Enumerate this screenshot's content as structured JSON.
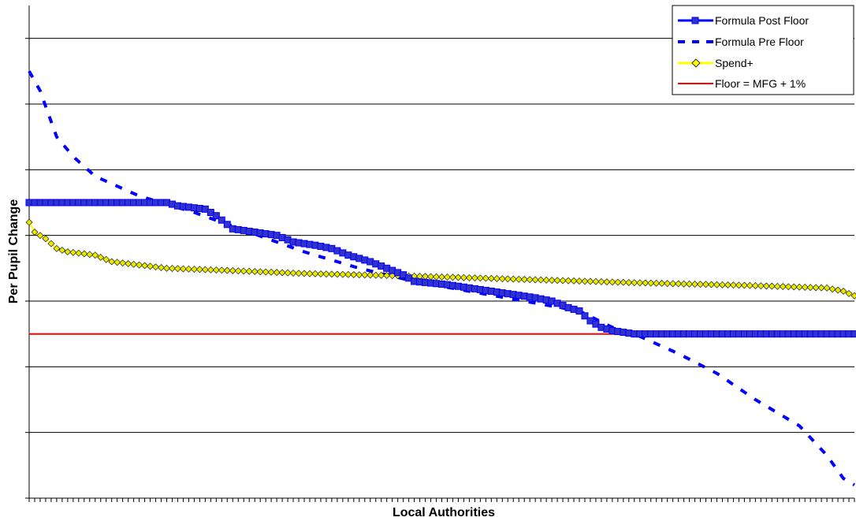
{
  "chart_data": {
    "type": "line",
    "title": "",
    "xlabel": "Local Authorities",
    "ylabel": "Per Pupil Change",
    "x_count": 150,
    "ylim": [
      0,
      7.5
    ],
    "y_gridlines": [
      1,
      2,
      3,
      4,
      5,
      6,
      7
    ],
    "grid": true,
    "tick_labels_shown": false,
    "legend_position": "top-right",
    "colors": {
      "post_floor": "#0000ff",
      "post_floor_marker": "#3333cc",
      "pre_floor": "#0000ff",
      "spend_plus_line": "#ffff00",
      "spend_plus_marker": "#e8e800",
      "floor": "#ff0000",
      "grid": "#000000"
    },
    "series": [
      {
        "name": "Formula Post Floor",
        "style": "solid-square-markers",
        "points": [
          [
            0,
            4.5
          ],
          [
            25,
            4.5
          ],
          [
            27,
            4.45
          ],
          [
            32,
            4.4
          ],
          [
            34,
            4.3
          ],
          [
            37,
            4.1
          ],
          [
            45,
            4.0
          ],
          [
            48,
            3.9
          ],
          [
            52,
            3.85
          ],
          [
            55,
            3.8
          ],
          [
            58,
            3.7
          ],
          [
            62,
            3.6
          ],
          [
            65,
            3.5
          ],
          [
            68,
            3.4
          ],
          [
            70,
            3.3
          ],
          [
            76,
            3.25
          ],
          [
            80,
            3.2
          ],
          [
            84,
            3.15
          ],
          [
            88,
            3.1
          ],
          [
            92,
            3.05
          ],
          [
            95,
            3.0
          ],
          [
            98,
            2.9
          ],
          [
            100,
            2.85
          ],
          [
            102,
            2.7
          ],
          [
            104,
            2.6
          ],
          [
            106,
            2.55
          ],
          [
            110,
            2.5
          ],
          [
            115,
            2.5
          ],
          [
            150,
            2.5
          ]
        ]
      },
      {
        "name": "Formula Pre Floor",
        "style": "dashed",
        "points": [
          [
            0,
            6.5
          ],
          [
            2,
            6.2
          ],
          [
            5,
            5.5
          ],
          [
            8,
            5.2
          ],
          [
            12,
            4.9
          ],
          [
            20,
            4.6
          ],
          [
            30,
            4.35
          ],
          [
            40,
            4.05
          ],
          [
            50,
            3.75
          ],
          [
            60,
            3.5
          ],
          [
            70,
            3.3
          ],
          [
            80,
            3.15
          ],
          [
            90,
            3.0
          ],
          [
            100,
            2.85
          ],
          [
            106,
            2.6
          ],
          [
            110,
            2.5
          ],
          [
            118,
            2.2
          ],
          [
            125,
            1.9
          ],
          [
            132,
            1.5
          ],
          [
            140,
            1.1
          ],
          [
            145,
            0.65
          ],
          [
            148,
            0.3
          ],
          [
            150,
            0.2
          ]
        ]
      },
      {
        "name": "Spend+",
        "style": "solid-diamond-markers",
        "points": [
          [
            0,
            4.2
          ],
          [
            1,
            4.05
          ],
          [
            3,
            3.95
          ],
          [
            5,
            3.8
          ],
          [
            7,
            3.75
          ],
          [
            12,
            3.7
          ],
          [
            15,
            3.6
          ],
          [
            20,
            3.55
          ],
          [
            25,
            3.5
          ],
          [
            35,
            3.47
          ],
          [
            50,
            3.42
          ],
          [
            70,
            3.38
          ],
          [
            90,
            3.33
          ],
          [
            110,
            3.28
          ],
          [
            130,
            3.24
          ],
          [
            145,
            3.2
          ],
          [
            148,
            3.15
          ],
          [
            150,
            3.08
          ]
        ]
      },
      {
        "name": "Floor = MFG + 1%",
        "style": "solid",
        "points": [
          [
            0,
            2.5
          ],
          [
            150,
            2.5
          ]
        ]
      }
    ]
  }
}
